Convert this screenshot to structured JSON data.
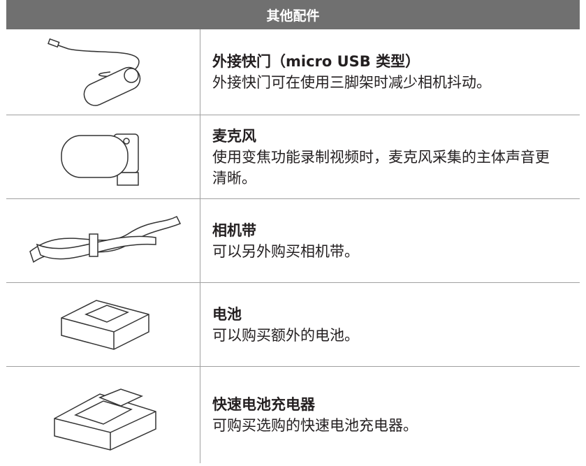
{
  "header": {
    "title": "其他配件"
  },
  "table": {
    "rows": [
      {
        "name": "外接快门（micro USB 类型）",
        "description": "外接快门可在使用三脚架时减少相机抖动。"
      },
      {
        "name": "麦克风",
        "description": "使用变焦功能录制视频时，麦克风采集的主体声音更清晰。"
      },
      {
        "name": "相机带",
        "description": "可以另外购买相机带。"
      },
      {
        "name": "电池",
        "description": "可以购买额外的电池。"
      },
      {
        "name": "快速电池充电器",
        "description": "可购买选购的快速电池充电器。"
      }
    ]
  }
}
